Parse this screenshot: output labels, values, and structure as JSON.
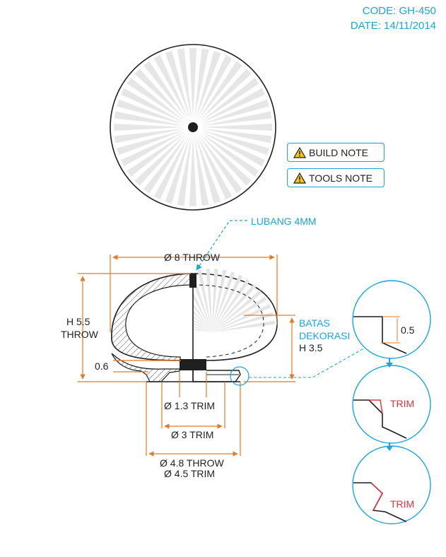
{
  "header": {
    "code": "CODE: GH-450",
    "date": "DATE: 14/11/2014"
  },
  "notes": [
    {
      "label": "BUILD NOTE",
      "icon": "warning-icon"
    },
    {
      "label": "TOOLS NOTE",
      "icon": "warning-icon"
    }
  ],
  "labels": {
    "hole": "LUBANG 4MM",
    "dia_throw": "Ø 8 THROW",
    "height_a": "H 5.5",
    "height_b": "THROW",
    "thickness": "0.6",
    "deco_a": "BATAS",
    "deco_b": "DEKORASI",
    "deco_c": "H 3.5",
    "dia_trim_small": "Ø 1.3 TRIM",
    "dia_3_trim": "Ø 3 TRIM",
    "dia_48_throw": "Ø 4.8 THROW",
    "dia_45_trim": "Ø 4.5 TRIM"
  },
  "details": [
    {
      "label": "0.5"
    },
    {
      "label": "TRIM"
    },
    {
      "label": "TRIM"
    }
  ],
  "colors": {
    "accent": "#1aa5dd",
    "dimension": "#e87722",
    "trim": "#e6303c",
    "line": "#1f1f1f"
  }
}
